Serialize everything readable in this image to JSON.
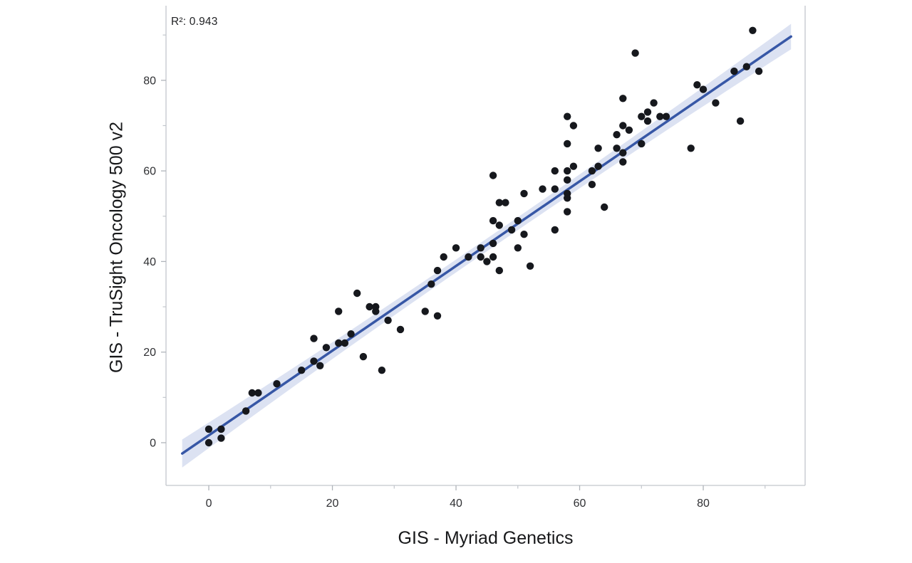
{
  "chart_data": {
    "type": "scatter",
    "title": "",
    "annotation": "R²: 0.943",
    "r_squared": 0.943,
    "xlabel": "GIS - Myriad Genetics",
    "ylabel": "GIS - TruSight Oncology 500 v2",
    "xlim": [
      -6.92,
      96.48
    ],
    "ylim": [
      -9.43,
      96.47
    ],
    "x_ticks": [
      0,
      20,
      40,
      60,
      80
    ],
    "x_minor_ticks": [
      10,
      30,
      50,
      70,
      90
    ],
    "y_ticks": [
      0,
      20,
      40,
      60,
      80
    ],
    "y_minor_ticks": [
      10,
      30,
      50,
      70,
      90
    ],
    "grid": false,
    "legend": "none",
    "points": [
      [
        0,
        0
      ],
      [
        0,
        3
      ],
      [
        2,
        1
      ],
      [
        2,
        3
      ],
      [
        6,
        7
      ],
      [
        7,
        11
      ],
      [
        8,
        11
      ],
      [
        11,
        13
      ],
      [
        15,
        16
      ],
      [
        17,
        18
      ],
      [
        18,
        17
      ],
      [
        17,
        23
      ],
      [
        19,
        21
      ],
      [
        21,
        29
      ],
      [
        21,
        22
      ],
      [
        22,
        22
      ],
      [
        23,
        24
      ],
      [
        24,
        33
      ],
      [
        25,
        19
      ],
      [
        26,
        30
      ],
      [
        27,
        30
      ],
      [
        27,
        29
      ],
      [
        28,
        16
      ],
      [
        29,
        27
      ],
      [
        31,
        25
      ],
      [
        35,
        29
      ],
      [
        36,
        35
      ],
      [
        37,
        28
      ],
      [
        37,
        38
      ],
      [
        38,
        41
      ],
      [
        40,
        43
      ],
      [
        42,
        41
      ],
      [
        44,
        43
      ],
      [
        44,
        41
      ],
      [
        45,
        40
      ],
      [
        46,
        44
      ],
      [
        46,
        41
      ],
      [
        47,
        38
      ],
      [
        46,
        49
      ],
      [
        47,
        48
      ],
      [
        47,
        53
      ],
      [
        48,
        53
      ],
      [
        46,
        59
      ],
      [
        49,
        47
      ],
      [
        50,
        49
      ],
      [
        50,
        43
      ],
      [
        51,
        55
      ],
      [
        51,
        46
      ],
      [
        52,
        39
      ],
      [
        54,
        56
      ],
      [
        56,
        56
      ],
      [
        56,
        60
      ],
      [
        56,
        47
      ],
      [
        58,
        72
      ],
      [
        59,
        70
      ],
      [
        58,
        66
      ],
      [
        59,
        61
      ],
      [
        58,
        60
      ],
      [
        58,
        58
      ],
      [
        58,
        55
      ],
      [
        58,
        54
      ],
      [
        58,
        51
      ],
      [
        62,
        60
      ],
      [
        63,
        61
      ],
      [
        62,
        57
      ],
      [
        63,
        65
      ],
      [
        64,
        52
      ],
      [
        66,
        68
      ],
      [
        67,
        62
      ],
      [
        66,
        65
      ],
      [
        67,
        64
      ],
      [
        67,
        70
      ],
      [
        68,
        69
      ],
      [
        67,
        76
      ],
      [
        69,
        86
      ],
      [
        70,
        72
      ],
      [
        71,
        73
      ],
      [
        71,
        71
      ],
      [
        72,
        75
      ],
      [
        73,
        72
      ],
      [
        74,
        72
      ],
      [
        70,
        66
      ],
      [
        78,
        65
      ],
      [
        79,
        79
      ],
      [
        80,
        78
      ],
      [
        82,
        75
      ],
      [
        86,
        71
      ],
      [
        85,
        82
      ],
      [
        87,
        83
      ],
      [
        89,
        82
      ],
      [
        88,
        91
      ]
    ],
    "regression": {
      "slope": 0.9345,
      "intercept": 1.63,
      "x_start": -4.3,
      "x_end": 94.2,
      "ci_center_x": 45,
      "ci_halfwidth_center": 1.4,
      "ci_halfwidth_start": 3.1,
      "ci_halfwidth_end": 2.8
    },
    "colors": {
      "point": "#16181d",
      "line": "#3757a6",
      "band": "#dce2f2",
      "axis": "#c2c6cc",
      "tick": "#b0b4ba",
      "tick_text": "#2f3033",
      "title_text": "#17181a"
    }
  }
}
